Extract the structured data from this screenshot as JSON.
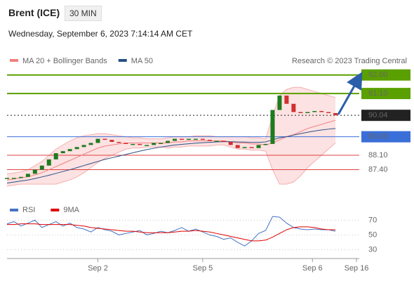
{
  "header": {
    "title": "Brent (ICE)",
    "interval": "30 MIN",
    "timestamp": "Wednesday, September 6, 2023 7:14:14 AM CET"
  },
  "chart_data": [
    {
      "type": "candlestick",
      "source": "Research © 2023 Trading Central",
      "x": [
        0,
        1,
        2,
        3,
        4,
        5,
        6,
        7,
        8,
        9,
        10,
        11,
        12,
        13,
        14,
        15,
        16,
        17,
        18,
        19,
        20,
        21,
        22,
        23,
        24,
        25,
        26,
        27,
        28,
        29,
        30,
        31,
        32,
        33,
        34,
        35,
        36,
        37,
        38,
        39,
        40,
        41,
        42,
        43,
        44,
        45,
        46,
        47
      ],
      "close": [
        87.0,
        87.0,
        87.05,
        87.2,
        87.4,
        87.6,
        87.9,
        88.2,
        88.3,
        88.4,
        88.5,
        88.6,
        88.7,
        88.9,
        88.85,
        88.75,
        88.7,
        88.65,
        88.65,
        88.6,
        88.6,
        88.7,
        88.7,
        88.8,
        88.9,
        88.85,
        88.9,
        88.9,
        88.85,
        88.8,
        88.8,
        88.75,
        88.6,
        88.45,
        88.5,
        88.45,
        88.6,
        88.65,
        90.3,
        91.0,
        90.6,
        90.2,
        90.15,
        90.2,
        90.25,
        90.2,
        90.15,
        90.04
      ],
      "up_color": "#1e7b1e",
      "down_color": "#d03030",
      "series": [
        {
          "name": "MA 20 + Bollinger Bands",
          "color": "#f08080",
          "values": [
            86.9,
            86.95,
            87.0,
            87.05,
            87.15,
            87.25,
            87.4,
            87.55,
            87.7,
            87.85,
            88.0,
            88.15,
            88.3,
            88.45,
            88.55,
            88.6,
            88.65,
            88.7,
            88.7,
            88.7,
            88.7,
            88.7,
            88.7,
            88.7,
            88.75,
            88.75,
            88.8,
            88.8,
            88.8,
            88.8,
            88.8,
            88.8,
            88.75,
            88.7,
            88.7,
            88.65,
            88.65,
            88.6,
            88.7,
            88.85,
            89.0,
            89.1,
            89.25,
            89.4,
            89.5,
            89.6,
            89.7,
            89.8
          ],
          "upper": [
            87.2,
            87.25,
            87.3,
            87.4,
            87.6,
            87.8,
            88.1,
            88.4,
            88.6,
            88.8,
            88.95,
            89.05,
            89.1,
            89.15,
            89.15,
            89.1,
            89.05,
            89.0,
            88.95,
            88.95,
            88.9,
            88.9,
            88.9,
            88.95,
            89.0,
            89.0,
            89.0,
            89.05,
            89.05,
            89.05,
            89.0,
            89.0,
            89.0,
            89.0,
            89.0,
            88.95,
            88.95,
            88.9,
            90.0,
            91.0,
            91.3,
            91.4,
            91.4,
            91.3,
            91.2,
            91.1,
            91.0,
            90.9
          ],
          "lower": [
            86.6,
            86.65,
            86.7,
            86.7,
            86.7,
            86.7,
            86.7,
            86.7,
            86.8,
            86.9,
            87.05,
            87.25,
            87.5,
            87.75,
            87.95,
            88.1,
            88.25,
            88.4,
            88.45,
            88.45,
            88.5,
            88.5,
            88.5,
            88.45,
            88.5,
            88.5,
            88.55,
            88.55,
            88.55,
            88.55,
            88.6,
            88.6,
            88.5,
            88.4,
            88.4,
            88.35,
            88.35,
            88.3,
            87.4,
            86.7,
            86.7,
            86.8,
            87.1,
            87.5,
            87.8,
            88.1,
            88.4,
            88.7
          ]
        },
        {
          "name": "MA 50",
          "color": "#2a4f86",
          "values": [
            86.75,
            86.8,
            86.85,
            86.9,
            86.97,
            87.05,
            87.13,
            87.22,
            87.31,
            87.4,
            87.5,
            87.6,
            87.7,
            87.8,
            87.9,
            87.98,
            88.06,
            88.14,
            88.22,
            88.3,
            88.38,
            88.44,
            88.5,
            88.55,
            88.6,
            88.63,
            88.66,
            88.69,
            88.71,
            88.73,
            88.75,
            88.76,
            88.76,
            88.75,
            88.74,
            88.73,
            88.73,
            88.75,
            88.85,
            88.95,
            89.0,
            89.08,
            89.15,
            89.22,
            89.28,
            89.33,
            89.37,
            89.4
          ]
        }
      ],
      "levels": [
        {
          "value": 92.0,
          "label": "92.00",
          "color": "#5aa000",
          "style": "box"
        },
        {
          "value": 91.1,
          "label": "91.10",
          "color": "#5aa000",
          "style": "box"
        },
        {
          "value": 90.04,
          "label": "90.04",
          "color": "#222222",
          "style": "dotted"
        },
        {
          "value": 89.0,
          "label": "89.00",
          "color": "#3a6fd8",
          "style": "box"
        },
        {
          "value": 88.1,
          "label": "88.10",
          "color": "#e04040",
          "style": "text"
        },
        {
          "value": 87.4,
          "label": "87.40",
          "color": "#e04040",
          "style": "text"
        }
      ],
      "ylim": [
        86.6,
        92.4
      ],
      "xlim": [
        0,
        50
      ]
    },
    {
      "type": "line",
      "x": [
        0,
        1,
        2,
        3,
        4,
        5,
        6,
        7,
        8,
        9,
        10,
        11,
        12,
        13,
        14,
        15,
        16,
        17,
        18,
        19,
        20,
        21,
        22,
        23,
        24,
        25,
        26,
        27,
        28,
        29,
        30,
        31,
        32,
        33,
        34,
        35,
        36,
        37,
        38,
        39,
        40,
        41,
        42,
        43,
        44,
        45,
        46,
        47
      ],
      "series": [
        {
          "name": "RSI",
          "color": "#4472c4",
          "values": [
            65,
            68,
            62,
            66,
            70,
            60,
            64,
            68,
            62,
            66,
            60,
            58,
            54,
            60,
            57,
            55,
            50,
            52,
            54,
            56,
            50,
            52,
            55,
            53,
            56,
            60,
            55,
            58,
            54,
            50,
            48,
            44,
            46,
            40,
            35,
            42,
            52,
            56,
            75,
            74,
            66,
            60,
            58,
            57,
            58,
            57,
            57,
            55
          ]
        },
        {
          "name": "9MA",
          "color": "#e00000",
          "values": [
            64,
            64,
            65,
            65,
            65,
            64,
            64,
            64,
            64,
            64,
            63,
            62,
            60,
            59,
            58,
            57,
            56,
            55,
            55,
            54,
            53,
            53,
            53,
            53,
            54,
            55,
            55,
            56,
            55,
            54,
            52,
            50,
            48,
            46,
            44,
            42,
            42,
            43,
            47,
            52,
            57,
            60,
            61,
            61,
            60,
            58,
            57,
            57
          ]
        }
      ],
      "ylim": [
        20,
        77
      ],
      "yticks": [
        70,
        50,
        30
      ],
      "grid": true,
      "xlim": [
        0,
        50
      ],
      "xticks": [
        {
          "value": 13,
          "label": "Sep 2"
        },
        {
          "value": 28,
          "label": "Sep 5"
        },
        {
          "value": 43.7,
          "label": "Sep 6"
        },
        {
          "value": 50,
          "label": "Sep 16"
        }
      ]
    }
  ]
}
